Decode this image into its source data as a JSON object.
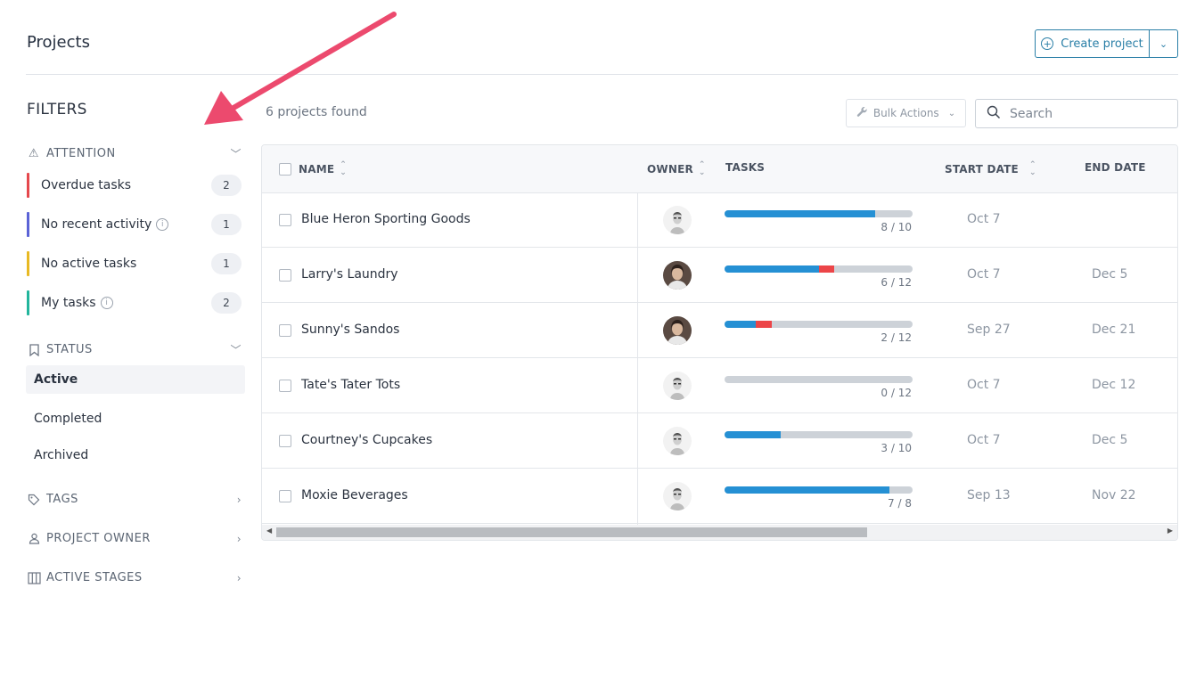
{
  "header": {
    "title": "Projects",
    "create_label": "Create project"
  },
  "sidebar": {
    "filters_title": "FILTERS",
    "attention": {
      "label": "ATTENTION",
      "items": [
        {
          "label": "Overdue tasks",
          "count": "2",
          "color": "#e5484d",
          "info": false
        },
        {
          "label": "No recent activity",
          "count": "1",
          "color": "#5b63d6",
          "info": true
        },
        {
          "label": "No active tasks",
          "count": "1",
          "color": "#e8b923",
          "info": false
        },
        {
          "label": "My tasks",
          "count": "2",
          "color": "#22b59c",
          "info": true
        }
      ]
    },
    "status": {
      "label": "STATUS",
      "items": [
        {
          "label": "Active",
          "selected": true
        },
        {
          "label": "Completed",
          "selected": false
        },
        {
          "label": "Archived",
          "selected": false
        }
      ]
    },
    "tags_label": "TAGS",
    "owner_label": "PROJECT OWNER",
    "stages_label": "ACTIVE STAGES"
  },
  "main": {
    "found_text": "6 projects found",
    "bulk_label": "Bulk Actions",
    "search_placeholder": "Search",
    "columns": {
      "name": "NAME",
      "owner": "OWNER",
      "tasks": "TASKS",
      "start": "START DATE",
      "end": "END DATE"
    },
    "rows": [
      {
        "name": "Blue Heron Sporting Goods",
        "owner": "male",
        "done": 8,
        "overdue": 0,
        "total": 10,
        "frac": "8 / 10",
        "start": "Oct 7",
        "end": ""
      },
      {
        "name": "Larry's Laundry",
        "owner": "female",
        "done": 6,
        "overdue": 1,
        "total": 12,
        "frac": "6 / 12",
        "start": "Oct 7",
        "end": "Dec 5"
      },
      {
        "name": "Sunny's Sandos",
        "owner": "female",
        "done": 2,
        "overdue": 1,
        "total": 12,
        "frac": "2 / 12",
        "start": "Sep 27",
        "end": "Dec 21"
      },
      {
        "name": "Tate's Tater Tots",
        "owner": "male",
        "done": 0,
        "overdue": 0,
        "total": 12,
        "frac": "0 / 12",
        "start": "Oct 7",
        "end": "Dec 12"
      },
      {
        "name": "Courtney's Cupcakes",
        "owner": "male",
        "done": 3,
        "overdue": 0,
        "total": 10,
        "frac": "3 / 10",
        "start": "Oct 7",
        "end": "Dec 5"
      },
      {
        "name": "Moxie Beverages",
        "owner": "male",
        "done": 7,
        "overdue": 0,
        "total": 8,
        "frac": "7 / 8",
        "start": "Sep 13",
        "end": "Nov 22"
      }
    ]
  },
  "colors": {
    "accent": "#2a7fa7",
    "progress_done": "#2590d4",
    "progress_overdue": "#ec4548",
    "annotation_arrow": "#ec4a6e"
  }
}
